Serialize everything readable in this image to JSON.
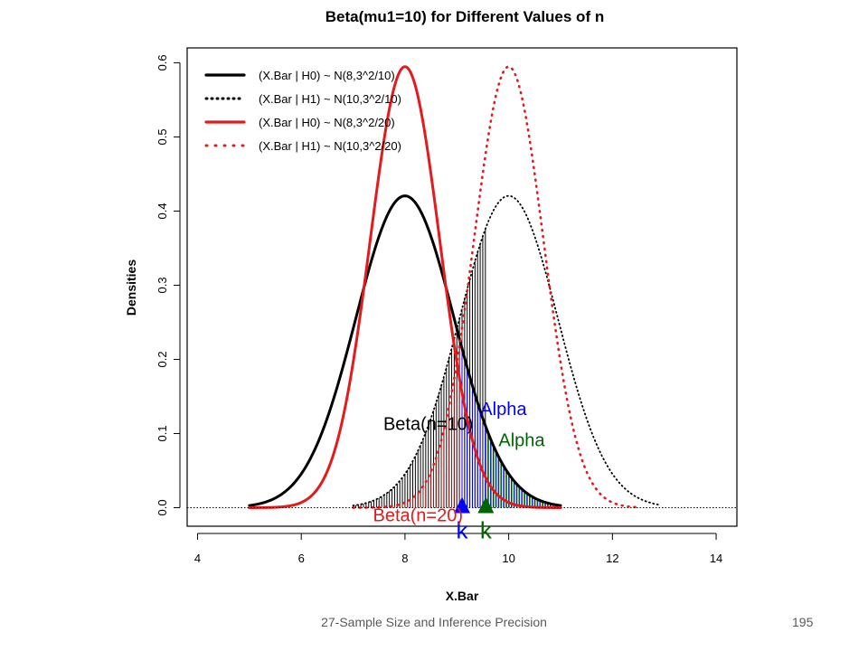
{
  "chart_data": {
    "type": "line",
    "title": "Beta(mu1=10) for Different Values of n",
    "xlabel": "X.Bar",
    "ylabel": "Densities",
    "xlim": [
      3.8,
      14.4
    ],
    "ylim": [
      -0.025,
      0.62
    ],
    "x_ticks": [
      "4",
      "6",
      "8",
      "10",
      "12",
      "14"
    ],
    "y_ticks": [
      "0.0",
      "0.1",
      "0.2",
      "0.3",
      "0.4",
      "0.5",
      "0.6"
    ],
    "legend_position": "top-left",
    "series": [
      {
        "name": "(X.Bar | H0) ~ N(8,3^2/10)",
        "mean": 8,
        "sd": 0.9487,
        "x_range": [
          5,
          11
        ],
        "color": "#000000",
        "style": "solid"
      },
      {
        "name": "(X.Bar | H1) ~ N(10,3^2/10)",
        "mean": 10,
        "sd": 0.9487,
        "x_range": [
          7,
          12.9
        ],
        "color": "#000000",
        "style": "dotted"
      },
      {
        "name": "(X.Bar | H0) ~ N(8,3^2/20)",
        "mean": 8,
        "sd": 0.6708,
        "x_range": [
          5,
          11
        ],
        "color": "#e41a1c",
        "style": "solid"
      },
      {
        "name": "(X.Bar | H1) ~ N(10,3^2/20)",
        "mean": 10,
        "sd": 0.6708,
        "x_range": [
          7,
          12.5
        ],
        "color": "#e41a1c",
        "style": "dotted"
      }
    ],
    "shaded_regions": [
      {
        "label": "Beta(n=10)",
        "under_curve": 1,
        "from": 7.0,
        "to": 9.56,
        "color": "#000000"
      },
      {
        "label": "Beta(n=20)",
        "under_curve": 3,
        "from": 7.0,
        "to": 9.1,
        "color": "#8b2020"
      },
      {
        "label": "Alpha",
        "under_curve": 0,
        "from": 9.1,
        "to": 11.0,
        "color": "#0000ff"
      },
      {
        "label": "Alpha",
        "under_curve": 0,
        "from": 9.56,
        "to": 11.0,
        "color": "#006400"
      }
    ],
    "critical_values": [
      {
        "label": "k",
        "x": 9.1,
        "color": "#0000ff"
      },
      {
        "label": "k",
        "x": 9.56,
        "color": "#006400"
      }
    ],
    "annotations": [
      {
        "text": "Beta(n=10)",
        "x": 8.45,
        "y": 0.105,
        "color": "#000000"
      },
      {
        "text": "Beta(n=20)",
        "x": 8.25,
        "y": -0.018,
        "color": "#e41a1c"
      },
      {
        "text": "Alpha",
        "x": 9.9,
        "y": 0.125,
        "color": "#0000ff"
      },
      {
        "text": "Alpha",
        "x": 10.25,
        "y": 0.083,
        "color": "#006400"
      }
    ]
  },
  "footer": {
    "text": "27-Sample Size and Inference Precision",
    "page": "195"
  }
}
